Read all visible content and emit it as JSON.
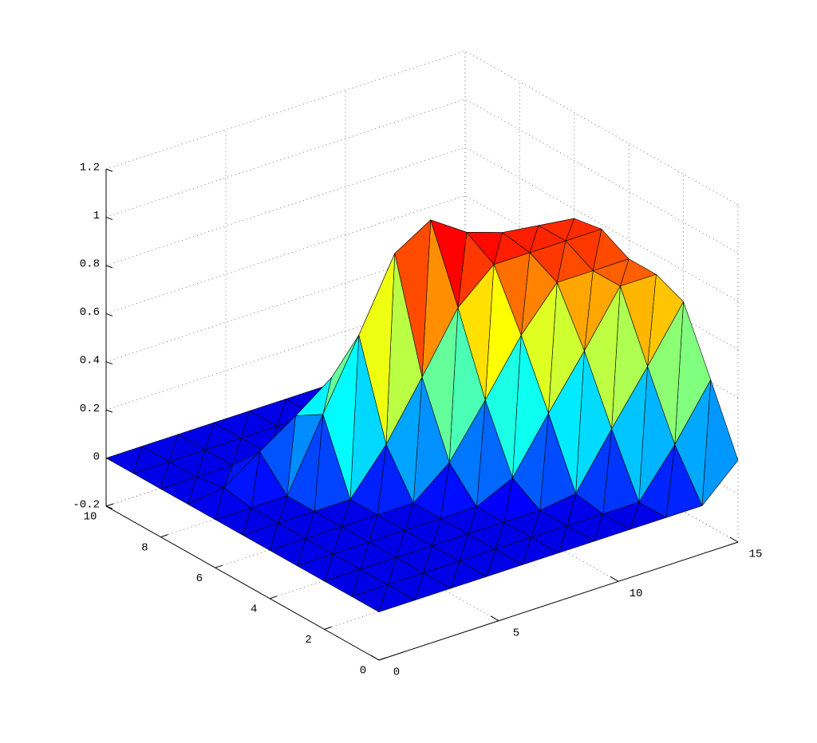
{
  "chart_data": {
    "type": "surface",
    "x": [
      0,
      1.5,
      3,
      4.5,
      6,
      7.5,
      9,
      10.5,
      12,
      13.5,
      15
    ],
    "y": [
      0,
      1,
      2,
      3,
      4,
      5,
      6,
      7,
      8,
      9,
      10
    ],
    "z": [
      [
        0,
        0,
        0,
        0,
        0,
        0,
        0,
        0,
        0,
        0,
        0.14
      ],
      [
        0,
        0,
        0,
        0,
        0,
        0,
        0,
        0,
        0,
        0.19,
        0.41
      ],
      [
        0,
        0,
        0,
        0,
        0,
        0,
        0,
        0.02,
        0.24,
        0.45,
        0.67
      ],
      [
        0,
        0,
        0,
        0,
        0,
        0,
        0.07,
        0.29,
        0.5,
        0.72,
        0.72
      ],
      [
        0,
        0,
        0,
        0,
        0,
        0.12,
        0.33,
        0.55,
        0.72,
        0.72,
        0.72
      ],
      [
        0,
        0,
        0,
        0,
        0.18,
        0.41,
        0.65,
        0.78,
        0.78,
        0.78,
        0.78
      ],
      [
        0,
        0,
        0,
        0.29,
        0.57,
        0.86,
        0.95,
        0.85,
        0.8,
        0.78,
        0.76
      ],
      [
        0,
        0.02,
        0.12,
        0.22,
        0.33,
        0.34,
        0.34,
        0.34,
        0.33,
        0.32,
        0.3
      ],
      [
        0,
        0,
        0,
        0,
        0,
        0,
        0,
        0,
        0,
        0,
        0
      ],
      [
        0,
        0,
        0,
        0,
        0,
        0,
        0,
        0,
        0,
        0,
        0
      ],
      [
        0,
        0,
        0,
        0,
        0,
        0,
        0,
        0,
        0,
        0,
        0
      ]
    ],
    "xlim": [
      0,
      15
    ],
    "ylim": [
      0,
      10
    ],
    "zlim": [
      -0.2,
      1.2
    ],
    "xticks": [
      0,
      5,
      10,
      15
    ],
    "yticks": [
      0,
      2,
      4,
      6,
      8,
      10
    ],
    "zticks": [
      -0.2,
      0,
      0.2,
      0.4,
      0.6,
      0.8,
      1,
      1.2
    ],
    "grid": true,
    "colormap": "jet",
    "edgecolor": "#000000"
  }
}
